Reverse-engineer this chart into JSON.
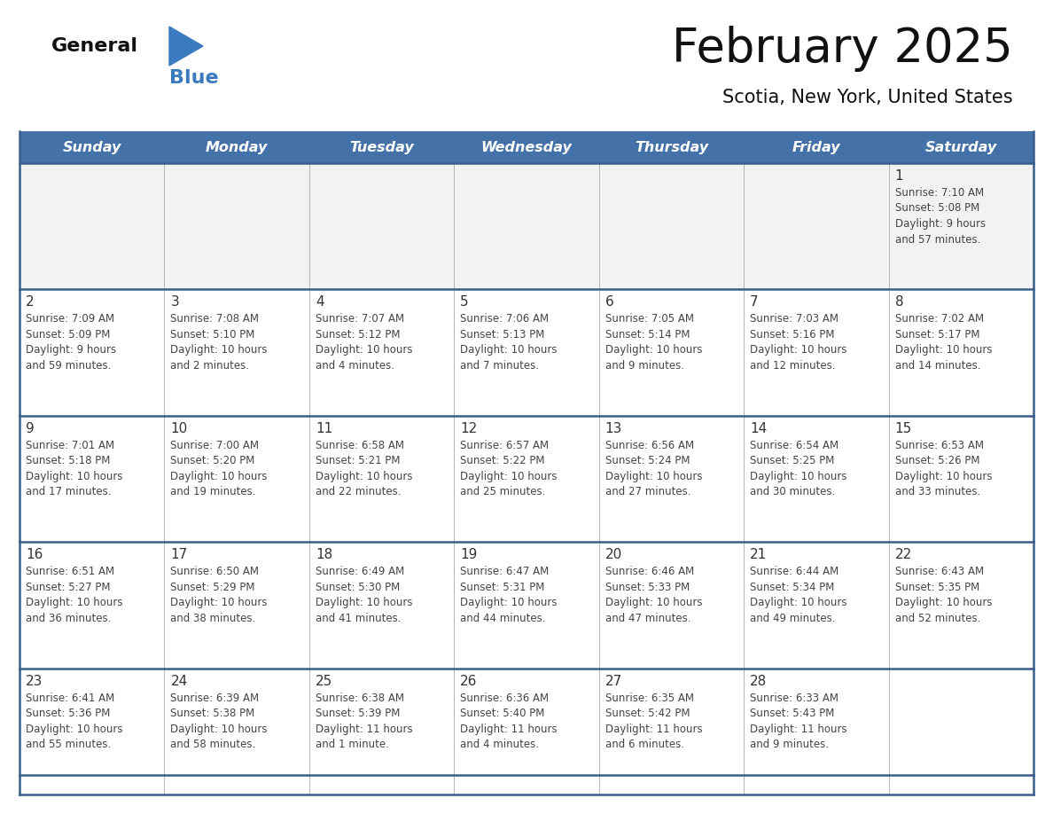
{
  "title": "February 2025",
  "subtitle": "Scotia, New York, United States",
  "header_bg": "#4472a8",
  "header_text_color": "#ffffff",
  "header_font_size": 11.5,
  "title_font_size": 38,
  "subtitle_font_size": 15,
  "day_headers": [
    "Sunday",
    "Monday",
    "Tuesday",
    "Wednesday",
    "Thursday",
    "Friday",
    "Saturday"
  ],
  "cell_bg_week0": "#f2f2f2",
  "cell_bg_other": "#ffffff",
  "number_color": "#333333",
  "text_color": "#444444",
  "row_line_color": "#3a5f8a",
  "col_line_color": "#aaaaaa",
  "logo_text1": "General",
  "logo_text2": "Blue",
  "logo_color1": "#111111",
  "logo_color2": "#3a7abf",
  "logo_tri_color": "#3a7abf",
  "weeks": [
    {
      "days": [
        {
          "date": null,
          "info": null
        },
        {
          "date": null,
          "info": null
        },
        {
          "date": null,
          "info": null
        },
        {
          "date": null,
          "info": null
        },
        {
          "date": null,
          "info": null
        },
        {
          "date": null,
          "info": null
        },
        {
          "date": 1,
          "info": "Sunrise: 7:10 AM\nSunset: 5:08 PM\nDaylight: 9 hours\nand 57 minutes."
        }
      ]
    },
    {
      "days": [
        {
          "date": 2,
          "info": "Sunrise: 7:09 AM\nSunset: 5:09 PM\nDaylight: 9 hours\nand 59 minutes."
        },
        {
          "date": 3,
          "info": "Sunrise: 7:08 AM\nSunset: 5:10 PM\nDaylight: 10 hours\nand 2 minutes."
        },
        {
          "date": 4,
          "info": "Sunrise: 7:07 AM\nSunset: 5:12 PM\nDaylight: 10 hours\nand 4 minutes."
        },
        {
          "date": 5,
          "info": "Sunrise: 7:06 AM\nSunset: 5:13 PM\nDaylight: 10 hours\nand 7 minutes."
        },
        {
          "date": 6,
          "info": "Sunrise: 7:05 AM\nSunset: 5:14 PM\nDaylight: 10 hours\nand 9 minutes."
        },
        {
          "date": 7,
          "info": "Sunrise: 7:03 AM\nSunset: 5:16 PM\nDaylight: 10 hours\nand 12 minutes."
        },
        {
          "date": 8,
          "info": "Sunrise: 7:02 AM\nSunset: 5:17 PM\nDaylight: 10 hours\nand 14 minutes."
        }
      ]
    },
    {
      "days": [
        {
          "date": 9,
          "info": "Sunrise: 7:01 AM\nSunset: 5:18 PM\nDaylight: 10 hours\nand 17 minutes."
        },
        {
          "date": 10,
          "info": "Sunrise: 7:00 AM\nSunset: 5:20 PM\nDaylight: 10 hours\nand 19 minutes."
        },
        {
          "date": 11,
          "info": "Sunrise: 6:58 AM\nSunset: 5:21 PM\nDaylight: 10 hours\nand 22 minutes."
        },
        {
          "date": 12,
          "info": "Sunrise: 6:57 AM\nSunset: 5:22 PM\nDaylight: 10 hours\nand 25 minutes."
        },
        {
          "date": 13,
          "info": "Sunrise: 6:56 AM\nSunset: 5:24 PM\nDaylight: 10 hours\nand 27 minutes."
        },
        {
          "date": 14,
          "info": "Sunrise: 6:54 AM\nSunset: 5:25 PM\nDaylight: 10 hours\nand 30 minutes."
        },
        {
          "date": 15,
          "info": "Sunrise: 6:53 AM\nSunset: 5:26 PM\nDaylight: 10 hours\nand 33 minutes."
        }
      ]
    },
    {
      "days": [
        {
          "date": 16,
          "info": "Sunrise: 6:51 AM\nSunset: 5:27 PM\nDaylight: 10 hours\nand 36 minutes."
        },
        {
          "date": 17,
          "info": "Sunrise: 6:50 AM\nSunset: 5:29 PM\nDaylight: 10 hours\nand 38 minutes."
        },
        {
          "date": 18,
          "info": "Sunrise: 6:49 AM\nSunset: 5:30 PM\nDaylight: 10 hours\nand 41 minutes."
        },
        {
          "date": 19,
          "info": "Sunrise: 6:47 AM\nSunset: 5:31 PM\nDaylight: 10 hours\nand 44 minutes."
        },
        {
          "date": 20,
          "info": "Sunrise: 6:46 AM\nSunset: 5:33 PM\nDaylight: 10 hours\nand 47 minutes."
        },
        {
          "date": 21,
          "info": "Sunrise: 6:44 AM\nSunset: 5:34 PM\nDaylight: 10 hours\nand 49 minutes."
        },
        {
          "date": 22,
          "info": "Sunrise: 6:43 AM\nSunset: 5:35 PM\nDaylight: 10 hours\nand 52 minutes."
        }
      ]
    },
    {
      "days": [
        {
          "date": 23,
          "info": "Sunrise: 6:41 AM\nSunset: 5:36 PM\nDaylight: 10 hours\nand 55 minutes."
        },
        {
          "date": 24,
          "info": "Sunrise: 6:39 AM\nSunset: 5:38 PM\nDaylight: 10 hours\nand 58 minutes."
        },
        {
          "date": 25,
          "info": "Sunrise: 6:38 AM\nSunset: 5:39 PM\nDaylight: 11 hours\nand 1 minute."
        },
        {
          "date": 26,
          "info": "Sunrise: 6:36 AM\nSunset: 5:40 PM\nDaylight: 11 hours\nand 4 minutes."
        },
        {
          "date": 27,
          "info": "Sunrise: 6:35 AM\nSunset: 5:42 PM\nDaylight: 11 hours\nand 6 minutes."
        },
        {
          "date": 28,
          "info": "Sunrise: 6:33 AM\nSunset: 5:43 PM\nDaylight: 11 hours\nand 9 minutes."
        },
        {
          "date": null,
          "info": null
        }
      ]
    }
  ]
}
